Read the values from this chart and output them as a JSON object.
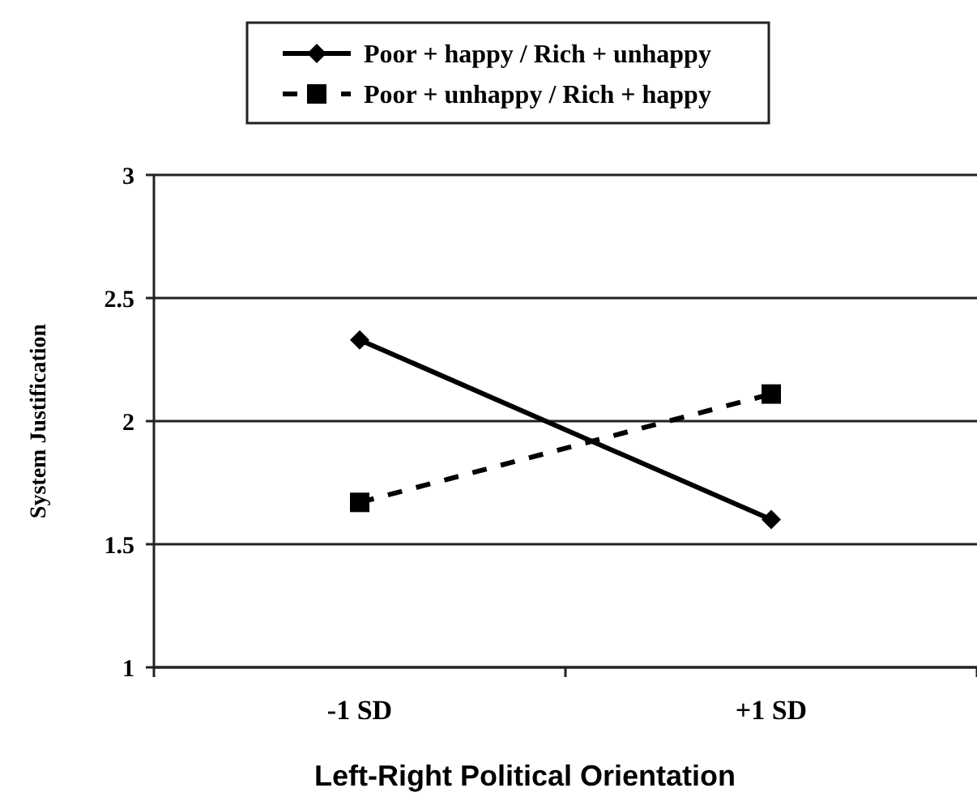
{
  "chart_data": {
    "type": "line",
    "xlabel": "Left-Right Political Orientation",
    "ylabel": "System Justification",
    "categories": [
      "-1 SD",
      "+1 SD"
    ],
    "series": [
      {
        "name": "Poor + happy / Rich + unhappy",
        "color": "#000000",
        "values": [
          2.33,
          1.6
        ],
        "marker": "diamond",
        "line_style": "solid"
      },
      {
        "name": "Poor + unhappy / Rich + happy",
        "color": "#000000",
        "values": [
          1.67,
          2.11
        ],
        "marker": "square",
        "line_style": "dashed"
      }
    ],
    "ylim": [
      1,
      3
    ],
    "yticks": [
      1,
      1.5,
      2,
      2.5,
      3
    ],
    "grid": "y",
    "legend": "top"
  }
}
